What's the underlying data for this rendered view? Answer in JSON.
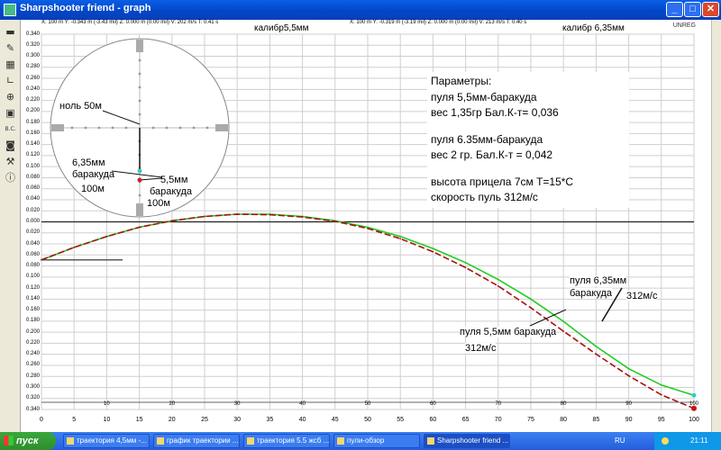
{
  "window": {
    "title": "Sharpshooter friend - graph",
    "minimize": "_",
    "maximize": "□",
    "close": "✕"
  },
  "status": {
    "left": "X: 100 m  Y: -0.343 m (-3.43 mil)  Z: 0.000 m (0.00 mil)  V: 202 m/s  T: 0.41 s",
    "right": "X: 100 m  Y: -0.319 m (-3.19 mil)  Z: 0.000 m (0.00 mil)  V: 213 m/s  T: 0.40 s",
    "caliber_left": "калибр5,5мм",
    "caliber_right": "калибр 6,35мм",
    "unreg": "UNREG"
  },
  "toolbar_icons": [
    "save-icon",
    "pencil-icon",
    "grid-icon",
    "axis-icon",
    "crosshair-icon",
    "ammo-icon",
    "bc-icon",
    "binoculars-icon",
    "wrench-icon",
    "info-icon"
  ],
  "toolbar": {
    "bc_label": "B.C."
  },
  "params": {
    "heading": "Параметры:",
    "line1": "пуля 5,5мм-баракуда",
    "line2": "вес 1,35гр Бал.К-т= 0,036",
    "line3": "пуля 6.35мм-баракуда",
    "line4": "вес 2 гр. Бал.К-т = 0,042",
    "line5": "высота прицела 7см T=15*C",
    "line6": "скорость пуль 312м/с"
  },
  "annotations": {
    "green_a": "пуля 6,35мм",
    "green_b": "баракуда",
    "green_c": "312м/с",
    "red_a": "пуля 5,5мм баракуда",
    "red_b": "312м/с"
  },
  "scope": {
    "zero_label": "ноль 50м",
    "b635_a": "6,35мм",
    "b635_b": "баракуда",
    "b635_c": "100м",
    "b55_a": "5,5мм",
    "b55_b": "баракуда",
    "b55_c": "100м"
  },
  "chart_data": {
    "type": "line",
    "xlim": [
      0,
      100
    ],
    "ylim": [
      -0.345,
      0.345
    ],
    "x_ticks": [
      "0",
      "5",
      "10",
      "15",
      "20",
      "25",
      "30",
      "35",
      "40",
      "45",
      "50",
      "55",
      "60",
      "65",
      "70",
      "75",
      "80",
      "85",
      "90",
      "95",
      "100"
    ],
    "x_top_ticks": [
      "10",
      "20",
      "30",
      "40",
      "50",
      "60",
      "70",
      "80",
      "90",
      "100"
    ],
    "y_ticks": [
      "0.340",
      "0.320",
      "0.300",
      "0.280",
      "0.260",
      "0.240",
      "0.220",
      "0.200",
      "0.180",
      "0.160",
      "0.140",
      "0.120",
      "0.100",
      "0.080",
      "0.060",
      "0.040",
      "0.020",
      "0.000",
      "0.020",
      "0.040",
      "0.060",
      "0.080",
      "0.100",
      "0.120",
      "0.140",
      "0.160",
      "0.180",
      "0.200",
      "0.220",
      "0.240",
      "0.260",
      "0.280",
      "0.300",
      "0.320",
      "0.340"
    ],
    "grid": true,
    "series": [
      {
        "name": "пуля 6,35мм баракуда",
        "color": "#22cc22",
        "x": [
          0,
          5,
          10,
          15,
          20,
          25,
          30,
          35,
          40,
          45,
          50,
          55,
          60,
          65,
          70,
          75,
          80,
          85,
          90,
          95,
          100
        ],
        "y": [
          -0.07,
          -0.047,
          -0.027,
          -0.01,
          0.002,
          0.01,
          0.014,
          0.014,
          0.01,
          0.002,
          -0.01,
          -0.027,
          -0.049,
          -0.075,
          -0.106,
          -0.142,
          -0.183,
          -0.229,
          -0.27,
          -0.3,
          -0.319
        ]
      },
      {
        "name": "пуля 5,5мм баракуда",
        "color": "#aa1111",
        "x": [
          0,
          5,
          10,
          15,
          20,
          25,
          30,
          35,
          40,
          45,
          50,
          55,
          60,
          65,
          70,
          75,
          80,
          85,
          90,
          95,
          100
        ],
        "y": [
          -0.07,
          -0.047,
          -0.027,
          -0.01,
          0.002,
          0.01,
          0.014,
          0.013,
          0.009,
          0.001,
          -0.012,
          -0.031,
          -0.055,
          -0.084,
          -0.118,
          -0.158,
          -0.201,
          -0.243,
          -0.283,
          -0.318,
          -0.343
        ]
      }
    ]
  },
  "taskbar": {
    "start": "пуск",
    "tasks": [
      "траектория 4,5мм -...",
      "график траектории ...",
      "траектория 5.5 жсб ...",
      "пули-обзор",
      "Sharpshooter friend ..."
    ],
    "lang": "RU",
    "clock": "21:11"
  }
}
